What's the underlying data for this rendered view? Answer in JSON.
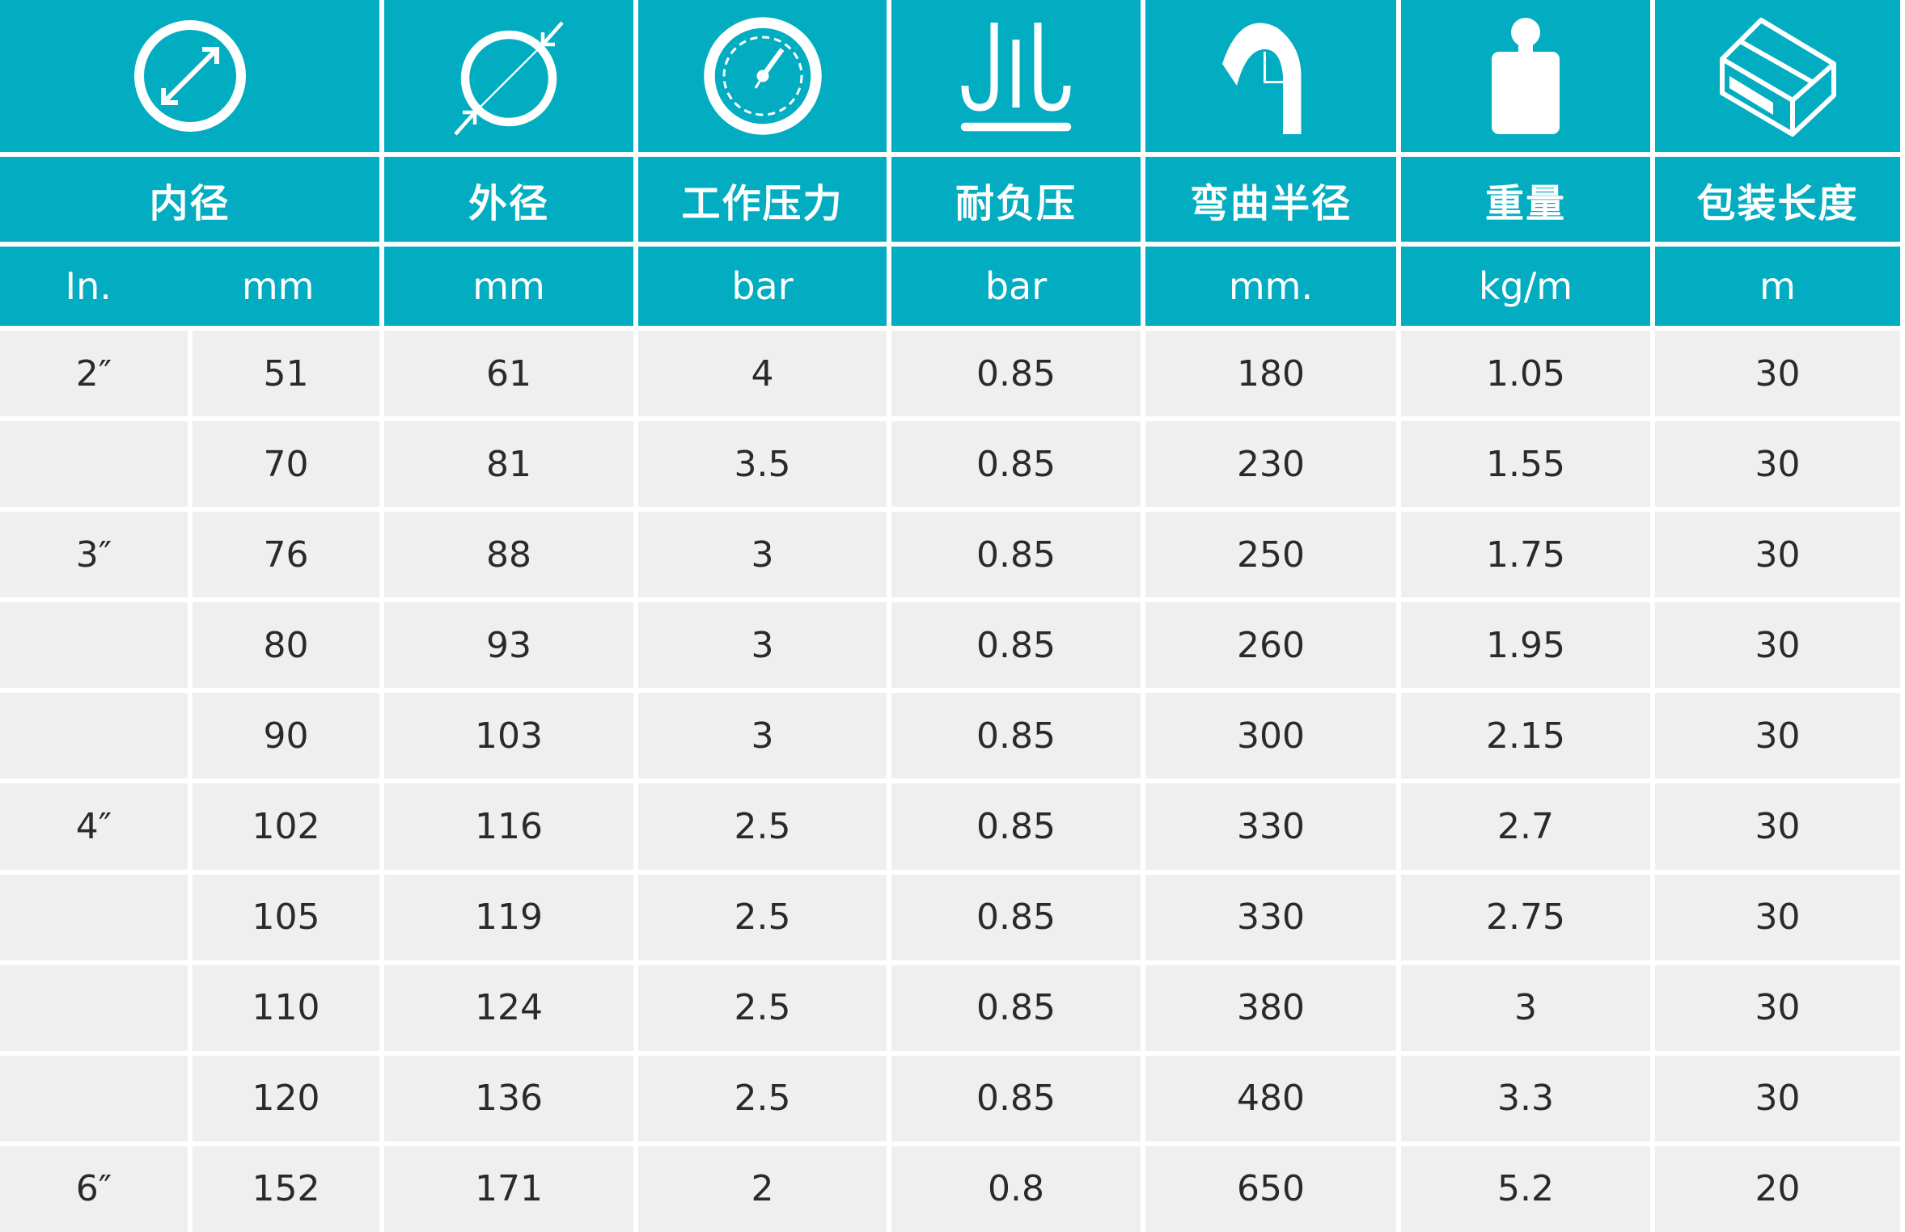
{
  "colors": {
    "header": "#02adc2",
    "row": "#efefef",
    "text": "#2a2a2a"
  },
  "columns": [
    {
      "icon": "inner-diameter-icon",
      "title": "内径",
      "units": [
        "In.",
        "mm"
      ]
    },
    {
      "icon": "outer-diameter-icon",
      "title": "外径",
      "unit": "mm"
    },
    {
      "icon": "pressure-gauge-icon",
      "title": "工作压力",
      "unit": "bar"
    },
    {
      "icon": "vacuum-icon",
      "title": "耐负压",
      "unit": "bar"
    },
    {
      "icon": "bend-radius-icon",
      "title": "弯曲半径",
      "unit": "mm."
    },
    {
      "icon": "weight-icon",
      "title": "重量",
      "unit": "kg/m"
    },
    {
      "icon": "package-box-icon",
      "title": "包装长度",
      "unit": "m"
    }
  ],
  "rows": [
    [
      "2″",
      "51",
      "61",
      "4",
      "0.85",
      "180",
      "1.05",
      "30"
    ],
    [
      "",
      "70",
      "81",
      "3.5",
      "0.85",
      "230",
      "1.55",
      "30"
    ],
    [
      "3″",
      "76",
      "88",
      "3",
      "0.85",
      "250",
      "1.75",
      "30"
    ],
    [
      "",
      "80",
      "93",
      "3",
      "0.85",
      "260",
      "1.95",
      "30"
    ],
    [
      "",
      "90",
      "103",
      "3",
      "0.85",
      "300",
      "2.15",
      "30"
    ],
    [
      "4″",
      "102",
      "116",
      "2.5",
      "0.85",
      "330",
      "2.7",
      "30"
    ],
    [
      "",
      "105",
      "119",
      "2.5",
      "0.85",
      "330",
      "2.75",
      "30"
    ],
    [
      "",
      "110",
      "124",
      "2.5",
      "0.85",
      "380",
      "3",
      "30"
    ],
    [
      "",
      "120",
      "136",
      "2.5",
      "0.85",
      "480",
      "3.3",
      "30"
    ],
    [
      "6″",
      "152",
      "171",
      "2",
      "0.8",
      "650",
      "5.2",
      "20"
    ]
  ]
}
